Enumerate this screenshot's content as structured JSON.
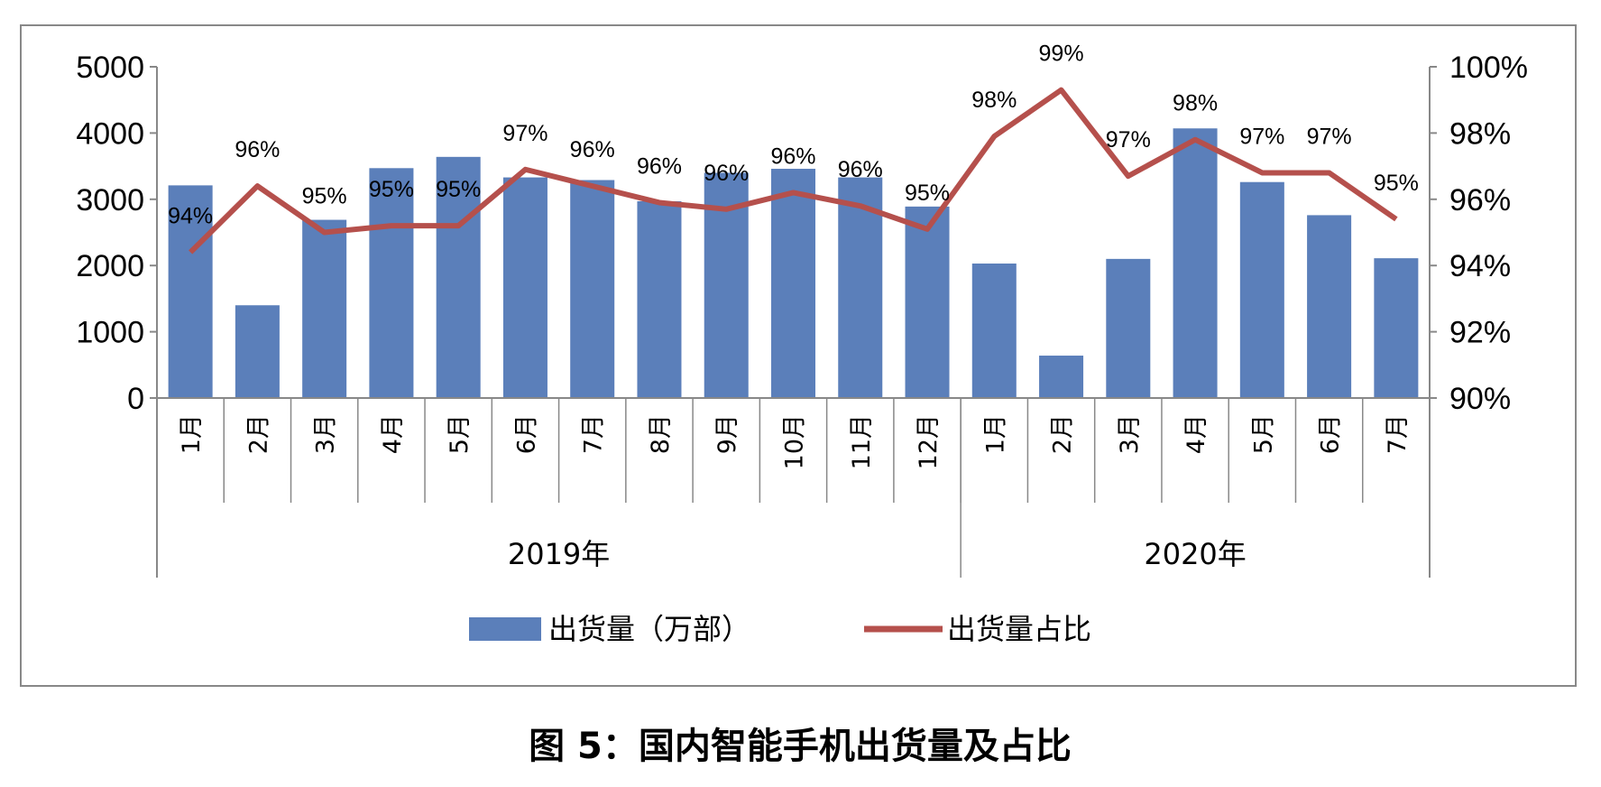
{
  "chart_data": {
    "type": "bar+line",
    "title": "图 5：国内智能手机出货量及占比",
    "categories": [
      "1月",
      "2月",
      "3月",
      "4月",
      "5月",
      "6月",
      "7月",
      "8月",
      "9月",
      "10月",
      "11月",
      "12月",
      "1月",
      "2月",
      "3月",
      "4月",
      "5月",
      "6月",
      "7月"
    ],
    "groups": [
      {
        "label": "2019年",
        "count": 12
      },
      {
        "label": "2020年",
        "count": 7
      }
    ],
    "series": [
      {
        "name": "出货量（万部）",
        "type": "bar",
        "axis": "left",
        "color": "#5B7FBA",
        "values": [
          3210,
          1400,
          2690,
          3470,
          3640,
          3330,
          3290,
          2970,
          3400,
          3460,
          3330,
          2890,
          2030,
          640,
          2100,
          4070,
          3260,
          2760,
          2110
        ]
      },
      {
        "name": "出货量占比",
        "type": "line",
        "axis": "right",
        "color": "#B5504C",
        "values": [
          94.4,
          96.4,
          95.0,
          95.2,
          95.2,
          96.9,
          96.4,
          95.9,
          95.7,
          96.2,
          95.8,
          95.1,
          97.9,
          99.3,
          96.7,
          97.8,
          96.8,
          96.8,
          95.4
        ],
        "labels": [
          "94%",
          "96%",
          "95%",
          "95%",
          "95%",
          "97%",
          "96%",
          "96%",
          "96%",
          "96%",
          "96%",
          "95%",
          "98%",
          "99%",
          "97%",
          "98%",
          "97%",
          "97%",
          "95%"
        ]
      }
    ],
    "y_left": {
      "ylim": [
        0,
        5000
      ],
      "ticks": [
        "0",
        "1000",
        "2000",
        "3000",
        "4000",
        "5000"
      ]
    },
    "y_right": {
      "ylim": [
        90,
        100
      ],
      "ticks": [
        "90%",
        "92%",
        "94%",
        "96%",
        "98%",
        "100%"
      ]
    },
    "legend": "bottom",
    "grid": false
  }
}
